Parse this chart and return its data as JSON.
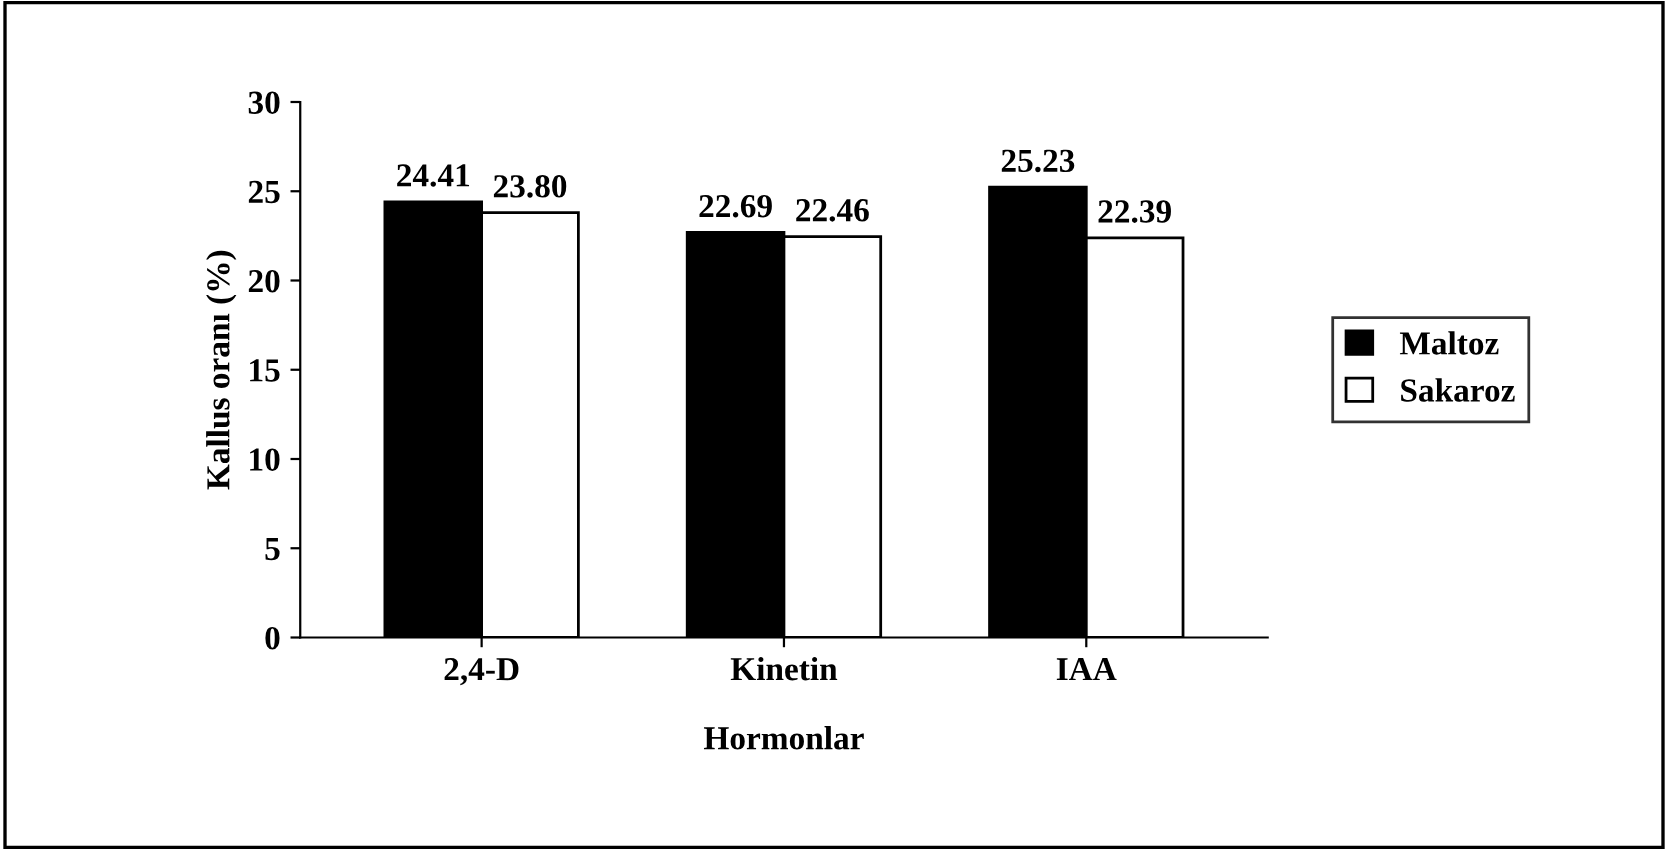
{
  "chart_data": {
    "type": "bar",
    "xlabel": "Hormonlar",
    "ylabel": "Kallus oranı (%)",
    "categories": [
      "2,4-D",
      "Kinetin",
      "IAA"
    ],
    "series": [
      {
        "name": "Maltoz",
        "color": "#000000",
        "values": [
          24.41,
          22.69,
          25.23
        ],
        "value_labels": [
          "24.41",
          "22.69",
          "25.23"
        ]
      },
      {
        "name": "Sakaroz",
        "color": "#ffffff",
        "values": [
          23.8,
          22.46,
          22.39
        ],
        "value_labels": [
          "23.80",
          "22.46",
          "22.39"
        ]
      }
    ],
    "ylim": [
      0,
      30
    ],
    "yticks": [
      0,
      5,
      10,
      15,
      20,
      25,
      30
    ],
    "grid": false,
    "legend": "right"
  }
}
